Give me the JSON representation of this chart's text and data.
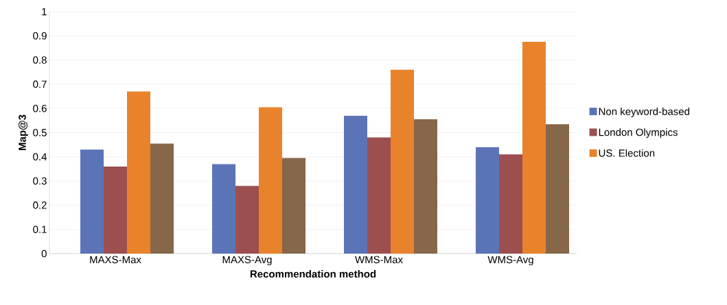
{
  "chart_data": {
    "type": "bar",
    "xlabel": "Recommendation method",
    "ylabel": "Map@3",
    "categories": [
      "MAXS-Max",
      "MAXS-Avg",
      "WMS-Max",
      "WMS-Avg"
    ],
    "series": [
      {
        "name": "Non keyword-based",
        "color": "#5b74b8",
        "values": [
          0.43,
          0.37,
          0.57,
          0.44
        ]
      },
      {
        "name": "London Olympics",
        "color": "#9c4f4f",
        "values": [
          0.36,
          0.28,
          0.48,
          0.41
        ]
      },
      {
        "name": "US. Election",
        "color": "#e8832b",
        "values": [
          0.67,
          0.605,
          0.76,
          0.875
        ]
      },
      {
        "color": "#87674a",
        "values": [
          0.455,
          0.395,
          0.555,
          0.535
        ]
      }
    ],
    "ylim": [
      0,
      1
    ],
    "yticks": [
      0,
      0.1,
      0.2,
      0.3,
      0.4,
      0.5,
      0.6,
      0.7,
      0.8,
      0.9,
      1
    ],
    "grid": "y",
    "legend": "right"
  }
}
